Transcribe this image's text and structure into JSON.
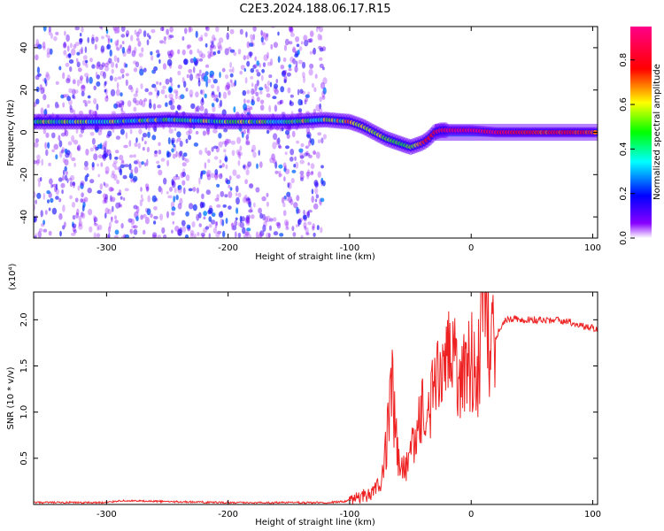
{
  "title": "C2E3.2024.188.06.17.R15",
  "chart_data": [
    {
      "type": "heatmap",
      "xlabel": "Height of straight line (km)",
      "ylabel": "Frequency (Hz)",
      "xlim": [
        -360,
        104
      ],
      "ylim": [
        -50,
        50
      ],
      "x_ticks": [
        -300,
        -200,
        -100,
        0,
        100
      ],
      "y_ticks": [
        -40,
        -20,
        0,
        20,
        40
      ],
      "colorbar": {
        "label": "Normalized spectral amplitude",
        "range": [
          0,
          0.95
        ],
        "ticks": [
          "0.0",
          "0.2",
          "0.4",
          "0.6",
          "0.8"
        ],
        "colors": [
          "#ffffff",
          "#8800ff",
          "#0000ff",
          "#00ffff",
          "#00ff00",
          "#ffff00",
          "#ff0000",
          "#ff0088"
        ]
      },
      "ridge": {
        "height_km": [
          -360,
          -300,
          -250,
          -200,
          -150,
          -120,
          -100,
          -90,
          -80,
          -70,
          -60,
          -50,
          -45,
          -40,
          -35,
          -30,
          -25,
          -20,
          -10,
          0,
          20,
          50,
          80,
          104
        ],
        "frequency_hz": [
          5,
          5,
          6,
          5,
          5,
          6,
          5,
          3,
          0,
          -3,
          -5,
          -7,
          -6,
          -5,
          -3,
          0,
          1,
          1,
          1,
          1,
          0,
          0,
          0,
          0
        ],
        "amplitude": [
          0.45,
          0.45,
          0.45,
          0.45,
          0.45,
          0.5,
          0.6,
          0.6,
          0.55,
          0.55,
          0.5,
          0.5,
          0.6,
          0.7,
          0.8,
          0.8,
          0.85,
          0.9,
          0.9,
          0.9,
          0.85,
          0.75,
          0.75,
          0.75
        ]
      },
      "noise_region_km": [
        -360,
        -120
      ]
    },
    {
      "type": "line",
      "xlabel": "Height of straight line (km)",
      "ylabel": "SNR (10 * v/v)",
      "y_multiplier": "(x10⁴)",
      "xlim": [
        -360,
        104
      ],
      "ylim": [
        0,
        2.3
      ],
      "x_ticks": [
        -300,
        -200,
        -100,
        0,
        100
      ],
      "y_ticks": [
        "0.5",
        "1.0",
        "1.5",
        "2.0"
      ],
      "y_tick_values": [
        0.5,
        1.0,
        1.5,
        2.0
      ],
      "series": [
        {
          "color": "#ee2222",
          "x": [
            -360,
            -300,
            -290,
            -200,
            -120,
            -105,
            -95,
            -85,
            -75,
            -70,
            -65,
            -60,
            -55,
            -50,
            -45,
            -40,
            -35,
            -30,
            -25,
            -20,
            -15,
            -10,
            -5,
            0,
            5,
            10,
            15,
            20,
            25,
            30,
            40,
            60,
            80,
            95,
            104
          ],
          "y": [
            0.02,
            0.02,
            0.04,
            0.02,
            0.02,
            0.03,
            0.06,
            0.12,
            0.22,
            0.65,
            1.25,
            0.45,
            0.35,
            0.55,
            0.65,
            1.15,
            0.95,
            1.35,
            1.25,
            1.45,
            2.0,
            1.35,
            1.55,
            1.6,
            1.45,
            2.05,
            1.75,
            1.8,
            1.95,
            2.02,
            2.0,
            2.0,
            1.98,
            1.92,
            1.9
          ]
        }
      ]
    }
  ]
}
